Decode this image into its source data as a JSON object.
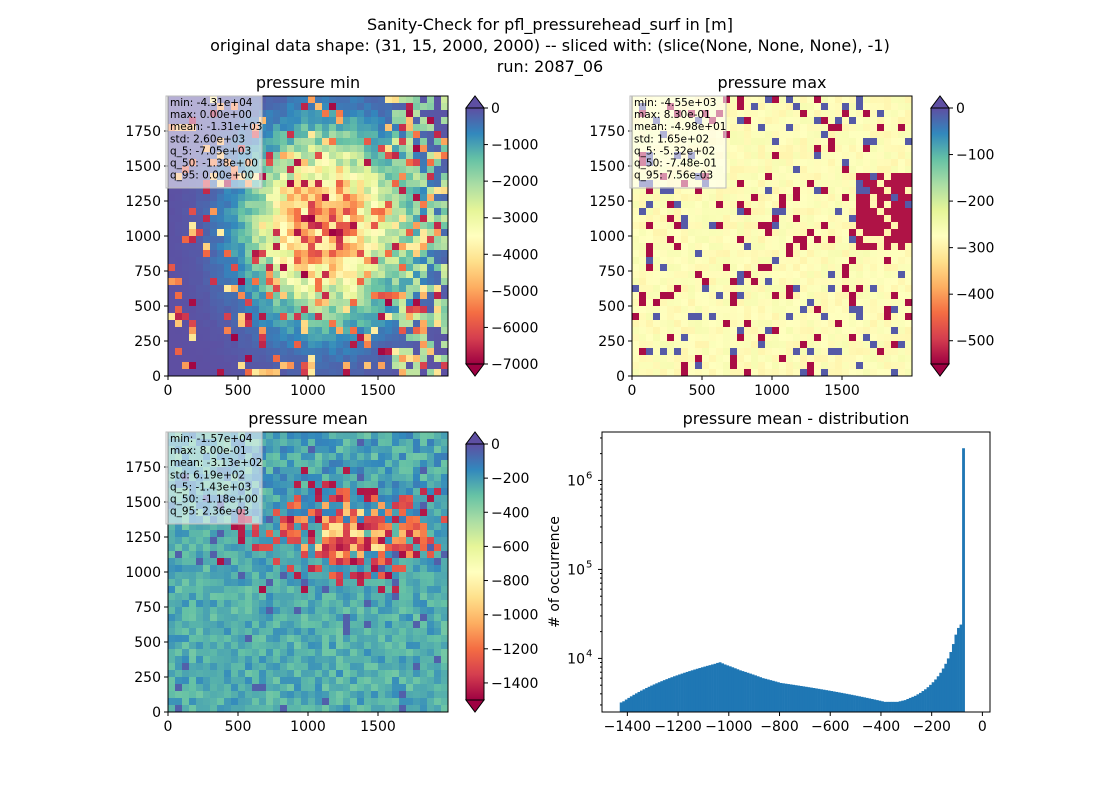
{
  "figure": {
    "title_lines": [
      "Sanity-Check for pfl_pressurehead_surf in [m]",
      "original data shape: (31, 15, 2000, 2000) -- sliced with: (slice(None, None, None), -1)",
      "run: 2087_06"
    ]
  },
  "chart_data": [
    {
      "type": "heatmap",
      "id": "min",
      "title": "pressure min",
      "xlim": [
        0,
        2000
      ],
      "ylim": [
        0,
        2000
      ],
      "xticks": [
        0,
        500,
        1000,
        1500
      ],
      "yticks": [
        0,
        250,
        500,
        750,
        1000,
        1250,
        1500,
        1750
      ],
      "colormap": "Spectral",
      "colorbar": {
        "min": -7000,
        "max": 0,
        "ticks": [
          0,
          -1000,
          -2000,
          -3000,
          -4000,
          -5000,
          -6000,
          -7000
        ],
        "extend_top": true,
        "extend_bottom": true
      },
      "stats": [
        "min: -4.31e+04",
        "max: 0.00e+00",
        "mean: -1.31e+03",
        "std: 2.60e+03",
        "q_5: -7.05e+03",
        "q_50: -1.38e+00",
        "q_95: 0.00e+00"
      ]
    },
    {
      "type": "heatmap",
      "id": "max",
      "title": "pressure max",
      "xlim": [
        0,
        2000
      ],
      "ylim": [
        0,
        2000
      ],
      "xticks": [
        0,
        500,
        1000,
        1500
      ],
      "yticks": [
        0,
        250,
        500,
        750,
        1000,
        1250,
        1500,
        1750
      ],
      "colormap": "Spectral",
      "colorbar": {
        "min": -550,
        "max": 0,
        "ticks": [
          0,
          -100,
          -200,
          -300,
          -400,
          -500
        ],
        "extend_top": true,
        "extend_bottom": true
      },
      "stats": [
        "min: -4.55e+03",
        "max: 8.30e-01",
        "mean: -4.98e+01",
        "std: 1.65e+02",
        "q_5: -5.32e+02",
        "q_50: -7.48e-01",
        "q_95: 7.56e-03"
      ]
    },
    {
      "type": "heatmap",
      "id": "mean",
      "title": "pressure mean",
      "xlim": [
        0,
        2000
      ],
      "ylim": [
        0,
        2000
      ],
      "xticks": [
        0,
        500,
        1000,
        1500
      ],
      "yticks": [
        0,
        250,
        500,
        750,
        1000,
        1250,
        1500,
        1750
      ],
      "colormap": "Spectral",
      "colorbar": {
        "min": -1500,
        "max": 0,
        "ticks": [
          0,
          -200,
          -400,
          -600,
          -800,
          -1000,
          -1200,
          -1400
        ],
        "extend_top": true,
        "extend_bottom": true
      },
      "stats": [
        "min: -1.57e+04",
        "max: 8.00e-01",
        "mean: -3.13e+02",
        "std: 6.19e+02",
        "q_5: -1.43e+03",
        "q_50: -1.18e+00",
        "q_95: 2.36e-03"
      ]
    },
    {
      "type": "bar",
      "id": "hist",
      "title": "pressure mean - distribution",
      "ylabel": "# of occurrence",
      "xlabel": "",
      "yscale": "log",
      "xlim": [
        -1500,
        30
      ],
      "ylim": [
        2500,
        3500000
      ],
      "xticks": [
        -1400,
        -1200,
        -1000,
        -800,
        -600,
        -400,
        -200,
        0
      ],
      "xtick_labels": [
        "−1400",
        "−1200",
        "−1000",
        "−800",
        "−600",
        "−400",
        "−200",
        "0"
      ],
      "yticks": [
        10000,
        100000,
        1000000
      ],
      "ytick_labels": [
        "10",
        "10",
        "10"
      ],
      "ytick_exponents": [
        "4",
        "5",
        "6"
      ],
      "color": "#1f77b4",
      "bin_start": -1430,
      "bin_width": 10,
      "values": [
        3200,
        3300,
        3450,
        3600,
        3750,
        3900,
        4050,
        4200,
        4350,
        4500,
        4650,
        4800,
        4950,
        5100,
        5250,
        5400,
        5550,
        5700,
        5850,
        6000,
        6150,
        6300,
        6450,
        6600,
        6750,
        6900,
        7050,
        7200,
        7350,
        7500,
        7650,
        7800,
        7950,
        8100,
        8250,
        8400,
        8550,
        8700,
        8900,
        9050,
        8800,
        8550,
        8350,
        8150,
        7950,
        7750,
        7550,
        7350,
        7200,
        7050,
        6900,
        6750,
        6600,
        6450,
        6300,
        6150,
        6000,
        5900,
        5800,
        5700,
        5600,
        5500,
        5400,
        5300,
        5250,
        5200,
        5150,
        5100,
        5050,
        5000,
        4950,
        4900,
        4850,
        4800,
        4750,
        4700,
        4650,
        4600,
        4550,
        4500,
        4450,
        4400,
        4350,
        4300,
        4250,
        4200,
        4150,
        4100,
        4050,
        4000,
        3950,
        3900,
        3850,
        3800,
        3750,
        3700,
        3650,
        3600,
        3550,
        3500,
        3450,
        3400,
        3350,
        3300,
        3250,
        3250,
        3250,
        3250,
        3250,
        3250,
        3300,
        3350,
        3400,
        3500,
        3600,
        3700,
        3800,
        3950,
        4100,
        4300,
        4500,
        4750,
        5050,
        5400,
        5800,
        6300,
        6900,
        7700,
        8700,
        10000,
        11800,
        14500,
        18500,
        22000,
        24000,
        2300000
      ]
    }
  ]
}
